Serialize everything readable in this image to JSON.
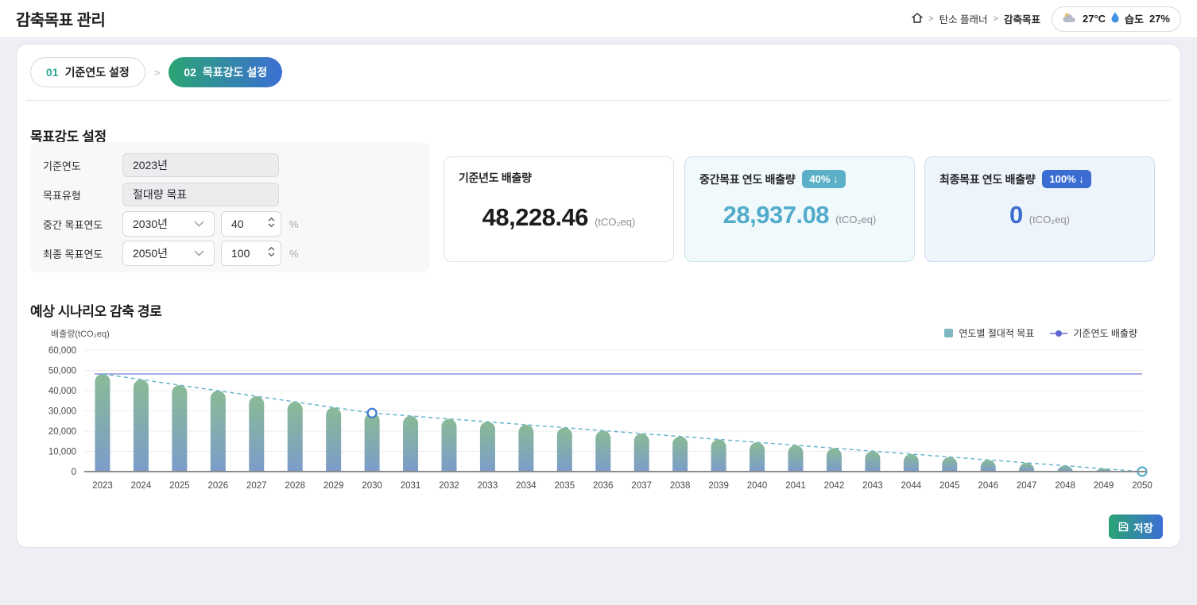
{
  "page": {
    "title": "감축목표 관리"
  },
  "breadcrumb": {
    "separator": ">",
    "items": [
      {
        "label": "탄소 플래너"
      },
      {
        "label": "감축목표"
      }
    ]
  },
  "weather": {
    "temperature": "27°C",
    "humidity_label": "습도",
    "humidity_value": "27%"
  },
  "stepper": {
    "separator": ">",
    "steps": [
      {
        "num": "01",
        "label": "기준연도 설정",
        "active": false
      },
      {
        "num": "02",
        "label": "목표강도 설정",
        "active": true
      }
    ]
  },
  "target_form": {
    "section_title": "목표강도 설정",
    "fields": {
      "base_year": {
        "label": "기준연도",
        "value": "2023년"
      },
      "target_type": {
        "label": "목표유형",
        "value": "절대량 목표"
      },
      "mid_target": {
        "label": "중간 목표연도",
        "year": "2030년",
        "percent": "40",
        "unit": "%"
      },
      "final_target": {
        "label": "최종 목표연도",
        "year": "2050년",
        "percent": "100",
        "unit": "%"
      }
    }
  },
  "summary_cards": {
    "base": {
      "title": "기준년도 배출량",
      "value": "48,228.46",
      "unit": "(tCO₂eq)"
    },
    "mid": {
      "title": "중간목표 연도 배출량",
      "badge": "40% ↓",
      "value": "28,937.08",
      "unit": "(tCO₂eq)"
    },
    "final": {
      "title": "최종목표 연도 배출량",
      "badge": "100% ↓",
      "value": "0",
      "unit": "(tCO₂eq)"
    }
  },
  "chart_section": {
    "title": "예상 시나리오 감축 경로"
  },
  "chart_data": {
    "type": "bar",
    "title": "예상 시나리오 감축 경로",
    "ylabel": "배출량(tCO₂eq)",
    "ylim": [
      0,
      60000
    ],
    "yticks": [
      0,
      10000,
      20000,
      30000,
      40000,
      50000,
      60000
    ],
    "grid": true,
    "legend_position": "top-right",
    "categories": [
      "2023",
      "2024",
      "2025",
      "2026",
      "2027",
      "2028",
      "2029",
      "2030",
      "2031",
      "2032",
      "2033",
      "2034",
      "2035",
      "2036",
      "2037",
      "2038",
      "2039",
      "2040",
      "2041",
      "2042",
      "2043",
      "2044",
      "2045",
      "2046",
      "2047",
      "2048",
      "2049",
      "2050"
    ],
    "series": [
      {
        "name": "연도별 절대적 목표",
        "type": "bar",
        "values": [
          48228.46,
          45472.55,
          42716.63,
          39960.72,
          37204.8,
          34448.89,
          31692.97,
          28937.08,
          27490.23,
          26043.37,
          24596.52,
          23149.66,
          21702.81,
          20255.96,
          18809.1,
          17362.25,
          15915.39,
          14468.54,
          13021.69,
          11574.83,
          10127.98,
          8681.12,
          7234.27,
          5787.42,
          4340.56,
          2893.71,
          1446.85,
          0
        ]
      },
      {
        "name": "기준연도 배출량",
        "type": "line",
        "value": 48228.46
      }
    ],
    "target_path": {
      "points": [
        {
          "year": "2023",
          "value": 48228.46
        },
        {
          "year": "2030",
          "value": 28937.08
        },
        {
          "year": "2050",
          "value": 0
        }
      ],
      "markers": [
        {
          "year": "2030",
          "value": 28937.08,
          "color": "#3f7ad1"
        },
        {
          "year": "2050",
          "value": 0,
          "color": "#55b0c8"
        }
      ]
    },
    "colors": {
      "bar_top": "#8aba96",
      "bar_bottom": "#7b9cca",
      "baseline_line": "#8e93db",
      "target_line": "#69b5cc",
      "axis": "#8c8c8c",
      "grid": "#ededf1",
      "tick_text": "#4a4a4b"
    }
  },
  "save_button": {
    "label": "저장"
  }
}
